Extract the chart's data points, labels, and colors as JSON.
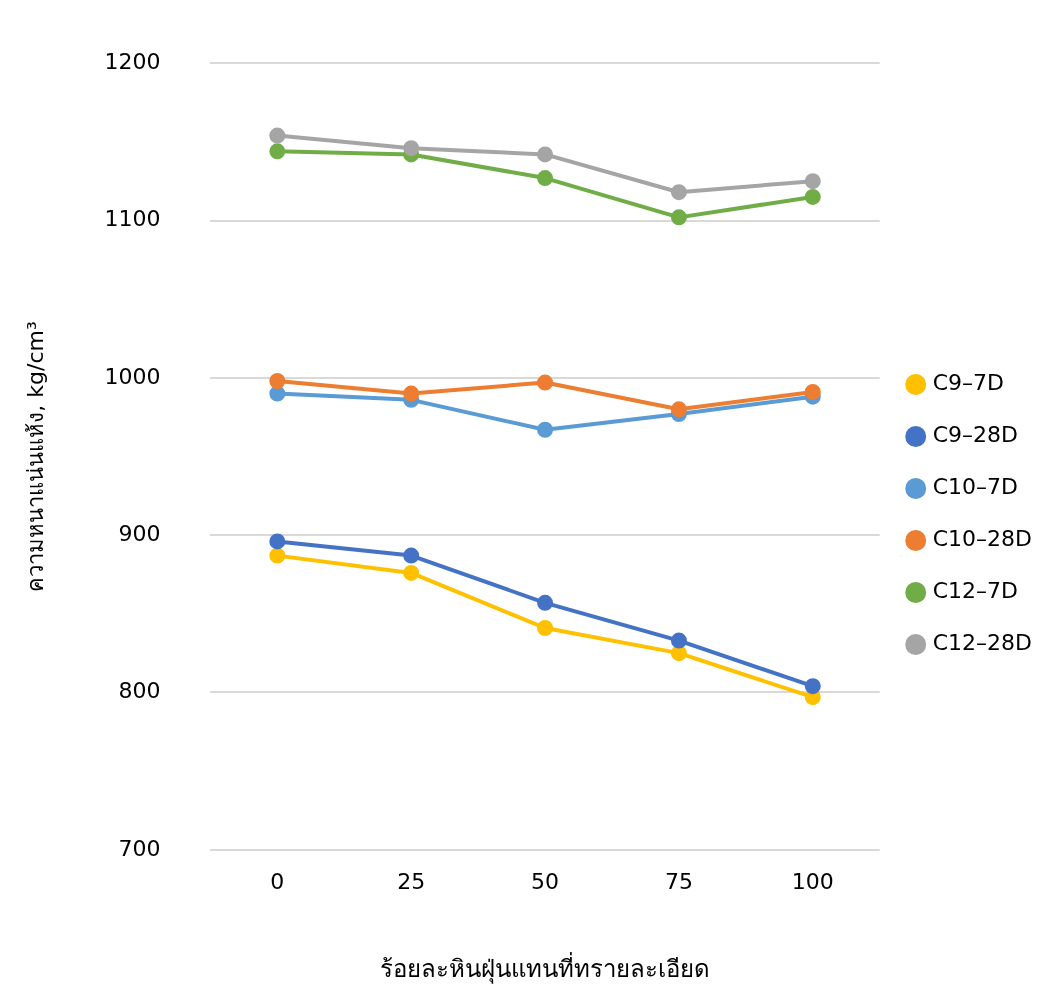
{
  "chart_data": {
    "type": "line",
    "xlabel": "ร้อยละหินฝุ่นแทนที่ทรายละเอียด",
    "ylabel": "ความหนาแน่นแห้ง, kg/cm³",
    "categories": [
      "0",
      "25",
      "50",
      "75",
      "100"
    ],
    "series": [
      {
        "name": "C9–7D",
        "color": "#ffc000",
        "values": [
          887,
          876,
          841,
          825,
          797
        ]
      },
      {
        "name": "C9–28D",
        "color": "#4472c4",
        "values": [
          896,
          887,
          857,
          833,
          804
        ]
      },
      {
        "name": "C10–7D",
        "color": "#5b9bd5",
        "values": [
          990,
          986,
          967,
          977,
          988
        ]
      },
      {
        "name": "C10–28D",
        "color": "#ed7d31",
        "values": [
          998,
          990,
          997,
          980,
          991
        ]
      },
      {
        "name": "C12–7D",
        "color": "#70ad47",
        "values": [
          1144,
          1142,
          1127,
          1102,
          1115
        ]
      },
      {
        "name": "C12–28D",
        "color": "#a5a5a5",
        "values": [
          1154,
          1146,
          1142,
          1118,
          1125
        ]
      }
    ],
    "ylim": [
      700,
      1200
    ],
    "yticks": [
      700,
      800,
      900,
      1000,
      1100,
      1200
    ],
    "grid": "y",
    "legend": "right",
    "marker": "circle",
    "line_style": "solid"
  }
}
